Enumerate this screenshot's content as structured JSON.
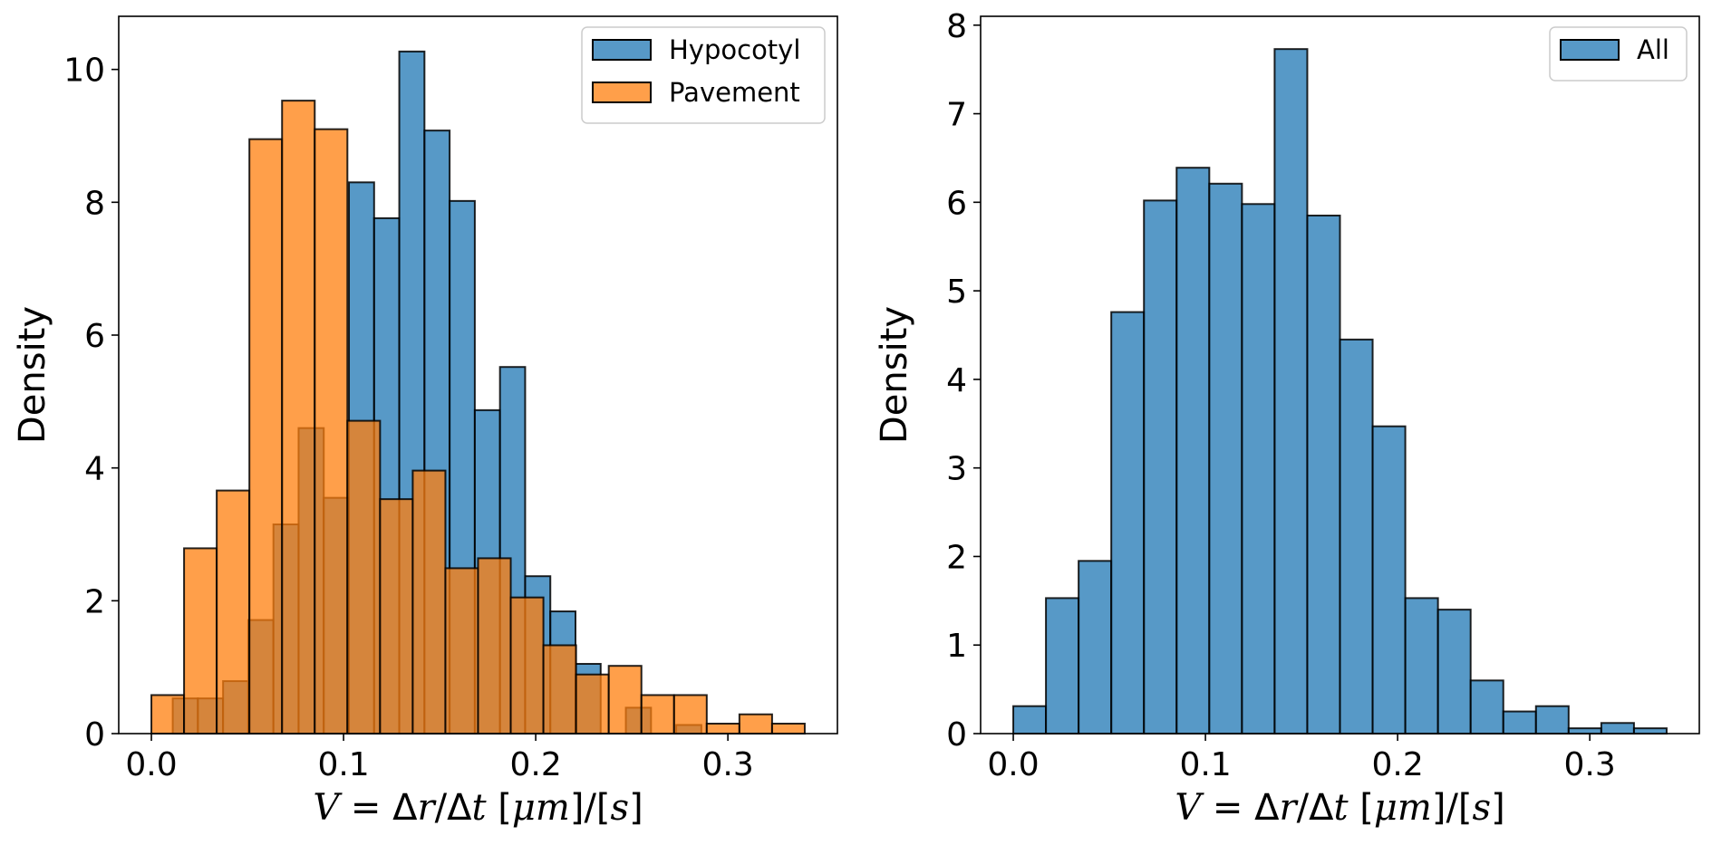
{
  "chart_data": [
    {
      "type": "histogram",
      "title": "",
      "xlabel": "V = Δr/Δt [μm]/[s]",
      "ylabel": "Density",
      "xlim": [
        -0.017,
        0.357
      ],
      "ylim": [
        0,
        10.8
      ],
      "xticks": [
        0.0,
        0.1,
        0.2,
        0.3
      ],
      "xtick_labels": [
        "0.0",
        "0.1",
        "0.2",
        "0.3"
      ],
      "yticks": [
        0,
        2,
        4,
        6,
        8,
        10
      ],
      "ytick_labels": [
        "0",
        "2",
        "4",
        "6",
        "8",
        "10"
      ],
      "grid": false,
      "legend_position": "top-right",
      "series": [
        {
          "name": "Hypocotyl",
          "color": "#1f77b4",
          "alpha": 0.75,
          "bin_edges": [
            0.0111,
            0.0242,
            0.0373,
            0.0504,
            0.0635,
            0.0766,
            0.0897,
            0.1028,
            0.1159,
            0.129,
            0.1421,
            0.1552,
            0.1683,
            0.1814,
            0.1945,
            0.2076,
            0.2207,
            0.2338,
            0.2469,
            0.26,
            0.2731,
            0.2862
          ],
          "values": [
            0.53,
            0.53,
            0.79,
            1.71,
            3.15,
            4.6,
            3.55,
            8.3,
            7.76,
            10.27,
            9.08,
            8.02,
            4.87,
            5.52,
            2.37,
            1.84,
            1.05,
            0.0,
            0.39,
            0.0,
            0.13
          ]
        },
        {
          "name": "Pavement",
          "color": "#ff7f0e",
          "alpha": 0.75,
          "bin_edges": [
            0.0,
            0.017,
            0.034,
            0.051,
            0.068,
            0.085,
            0.102,
            0.119,
            0.136,
            0.153,
            0.17,
            0.187,
            0.204,
            0.221,
            0.238,
            0.255,
            0.272,
            0.289,
            0.306,
            0.323,
            0.34
          ],
          "values": [
            0.58,
            2.79,
            3.66,
            8.95,
            9.53,
            9.1,
            4.71,
            3.53,
            3.96,
            2.49,
            2.64,
            2.05,
            1.33,
            0.89,
            1.02,
            0.58,
            0.58,
            0.15,
            0.29,
            0.15
          ]
        }
      ]
    },
    {
      "type": "histogram",
      "title": "",
      "xlabel": "V = Δr/Δt [μm]/[s]",
      "ylabel": "Density",
      "xlim": [
        -0.017,
        0.357
      ],
      "ylim": [
        0,
        8.1
      ],
      "xticks": [
        0.0,
        0.1,
        0.2,
        0.3
      ],
      "xtick_labels": [
        "0.0",
        "0.1",
        "0.2",
        "0.3"
      ],
      "yticks": [
        0,
        1,
        2,
        3,
        4,
        5,
        6,
        7,
        8
      ],
      "ytick_labels": [
        "0",
        "1",
        "2",
        "3",
        "4",
        "5",
        "6",
        "7",
        "8"
      ],
      "grid": false,
      "legend_position": "top-right",
      "series": [
        {
          "name": "All",
          "color": "#1f77b4",
          "alpha": 0.75,
          "bin_edges": [
            0.0,
            0.017,
            0.034,
            0.051,
            0.068,
            0.085,
            0.102,
            0.119,
            0.136,
            0.153,
            0.17,
            0.187,
            0.204,
            0.221,
            0.238,
            0.255,
            0.272,
            0.289,
            0.306,
            0.323,
            0.34
          ],
          "values": [
            0.31,
            1.53,
            1.95,
            4.76,
            6.02,
            6.39,
            6.21,
            5.98,
            7.73,
            5.85,
            4.45,
            3.47,
            1.53,
            1.4,
            0.6,
            0.25,
            0.31,
            0.06,
            0.12,
            0.06
          ]
        }
      ]
    }
  ]
}
